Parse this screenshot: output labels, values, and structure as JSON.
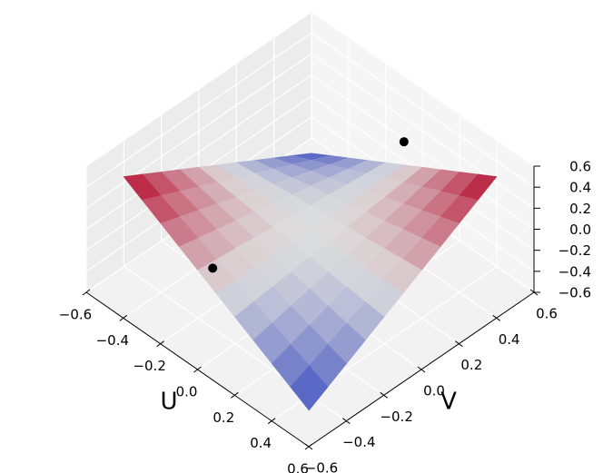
{
  "chart_data": {
    "type": "surface",
    "xlabel": "U",
    "ylabel": "V",
    "xlim": [
      -0.6,
      0.6
    ],
    "ylim": [
      -0.6,
      0.6
    ],
    "zlim": [
      -0.6,
      0.6
    ],
    "xticks": [
      {
        "value": -0.6,
        "label": "−0.6"
      },
      {
        "value": -0.4,
        "label": "−0.4"
      },
      {
        "value": -0.2,
        "label": "−0.2"
      },
      {
        "value": 0,
        "label": "0.0"
      },
      0.2,
      0.4,
      0.6
    ],
    "yticks": [
      {
        "value": -0.6,
        "label": "−0.6"
      },
      {
        "value": -0.4,
        "label": "−0.4"
      },
      {
        "value": -0.2,
        "label": "−0.2"
      },
      {
        "value": 0,
        "label": "0.0"
      },
      0.2,
      0.4,
      0.6
    ],
    "zticks": [
      {
        "value": -0.6,
        "label": "−0.6"
      },
      {
        "value": -0.4,
        "label": "−0.4"
      },
      {
        "value": -0.2,
        "label": "−0.2"
      },
      {
        "value": 0,
        "label": "0.0"
      },
      0.2,
      0.4,
      0.6
    ],
    "grid": true,
    "cmap": [
      "#3b4cc0",
      "#dddddd",
      "#b40426"
    ],
    "surface": {
      "u": [
        -0.5,
        -0.4,
        -0.3,
        -0.2,
        -0.1,
        0,
        0.1,
        0.2,
        0.3,
        0.4,
        0.5
      ],
      "v": [
        -0.5,
        -0.4,
        -0.3,
        -0.2,
        -0.1,
        0,
        0.1,
        0.2,
        0.3,
        0.4,
        0.5
      ],
      "z": [
        [
          0.5,
          0.4,
          0.3,
          0.2,
          0.1,
          0,
          -0.1,
          -0.2,
          -0.3,
          -0.4,
          -0.5
        ],
        [
          0.4,
          0.32,
          0.24,
          0.16,
          0.08,
          0,
          -0.08,
          -0.16,
          -0.24,
          -0.32,
          -0.4
        ],
        [
          0.3,
          0.24,
          0.18,
          0.12,
          0.06,
          0,
          -0.06,
          -0.12,
          -0.18,
          -0.24,
          -0.3
        ],
        [
          0.2,
          0.16,
          0.12,
          0.08,
          0.04,
          0,
          -0.04,
          -0.08,
          -0.12,
          -0.16,
          -0.2
        ],
        [
          0.1,
          0.08,
          0.06,
          0.04,
          0.02,
          0,
          -0.02,
          -0.04,
          -0.06,
          -0.08,
          -0.1
        ],
        [
          0,
          0,
          0,
          0,
          0,
          0,
          0,
          0,
          0,
          0,
          0
        ],
        [
          -0.1,
          -0.08,
          -0.06,
          -0.04,
          -0.02,
          0,
          0.02,
          0.04,
          0.06,
          0.08,
          0.1
        ],
        [
          -0.2,
          -0.16,
          -0.12,
          -0.08,
          -0.04,
          0,
          0.04,
          0.08,
          0.12,
          0.16,
          0.2
        ],
        [
          -0.3,
          -0.24,
          -0.18,
          -0.12,
          -0.06,
          0,
          0.06,
          0.12,
          0.18,
          0.24,
          0.3
        ],
        [
          -0.4,
          -0.32,
          -0.24,
          -0.16,
          -0.08,
          0,
          0.08,
          0.16,
          0.24,
          0.32,
          0.4
        ],
        [
          -0.5,
          -0.4,
          -0.3,
          -0.2,
          -0.1,
          0,
          0.1,
          0.2,
          0.3,
          0.4,
          0.5
        ]
      ]
    },
    "points": {
      "color": "#000000",
      "u": [
        0,
        -0.08
      ],
      "v": [
        0.5,
        -0.44
      ],
      "z": [
        0.22,
        0.07
      ]
    }
  }
}
